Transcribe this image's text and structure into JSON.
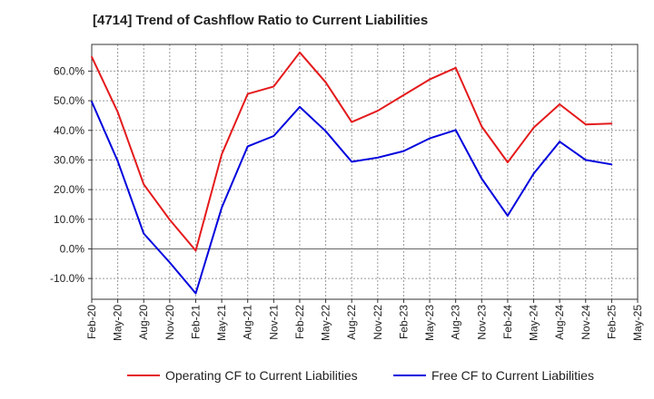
{
  "chart_data": {
    "type": "line",
    "title": "[4714]  Trend of Cashflow Ratio to Current Liabilities",
    "xlabel": "",
    "ylabel": "",
    "x": [
      "Feb-20",
      "May-20",
      "Aug-20",
      "Nov-20",
      "Feb-21",
      "May-21",
      "Aug-21",
      "Nov-21",
      "Feb-22",
      "May-22",
      "Aug-22",
      "Nov-22",
      "Feb-23",
      "May-23",
      "Aug-23",
      "Nov-23",
      "Feb-24",
      "May-24",
      "Aug-24",
      "Nov-24",
      "Feb-25",
      "May-25"
    ],
    "ylim": [
      -17,
      69
    ],
    "yticks": [
      -10,
      0,
      10,
      20,
      30,
      40,
      50,
      60
    ],
    "ytick_labels": [
      "-10.0%",
      "0.0%",
      "10.0%",
      "20.0%",
      "30.0%",
      "40.0%",
      "50.0%",
      "60.0%"
    ],
    "grid": true,
    "legend_position": "bottom",
    "series": [
      {
        "name": "Operating CF to Current Liabilities",
        "color": "#e41a1c",
        "values": [
          64.8,
          46.2,
          21.8,
          9.8,
          -0.6,
          31.9,
          52.3,
          54.8,
          66.3,
          56.2,
          42.8,
          46.6,
          51.9,
          57.2,
          61.1,
          41.3,
          29.2,
          40.9,
          48.8,
          42.0,
          42.3,
          null
        ]
      },
      {
        "name": "Free CF to Current Liabilities",
        "color": "#0000dd",
        "values": [
          49.7,
          29.6,
          5.2,
          -4.6,
          -15.0,
          13.9,
          34.6,
          38.1,
          47.9,
          39.7,
          29.4,
          30.8,
          33.0,
          37.3,
          40.1,
          23.7,
          11.2,
          25.4,
          36.2,
          30.0,
          28.5,
          null
        ]
      }
    ]
  }
}
